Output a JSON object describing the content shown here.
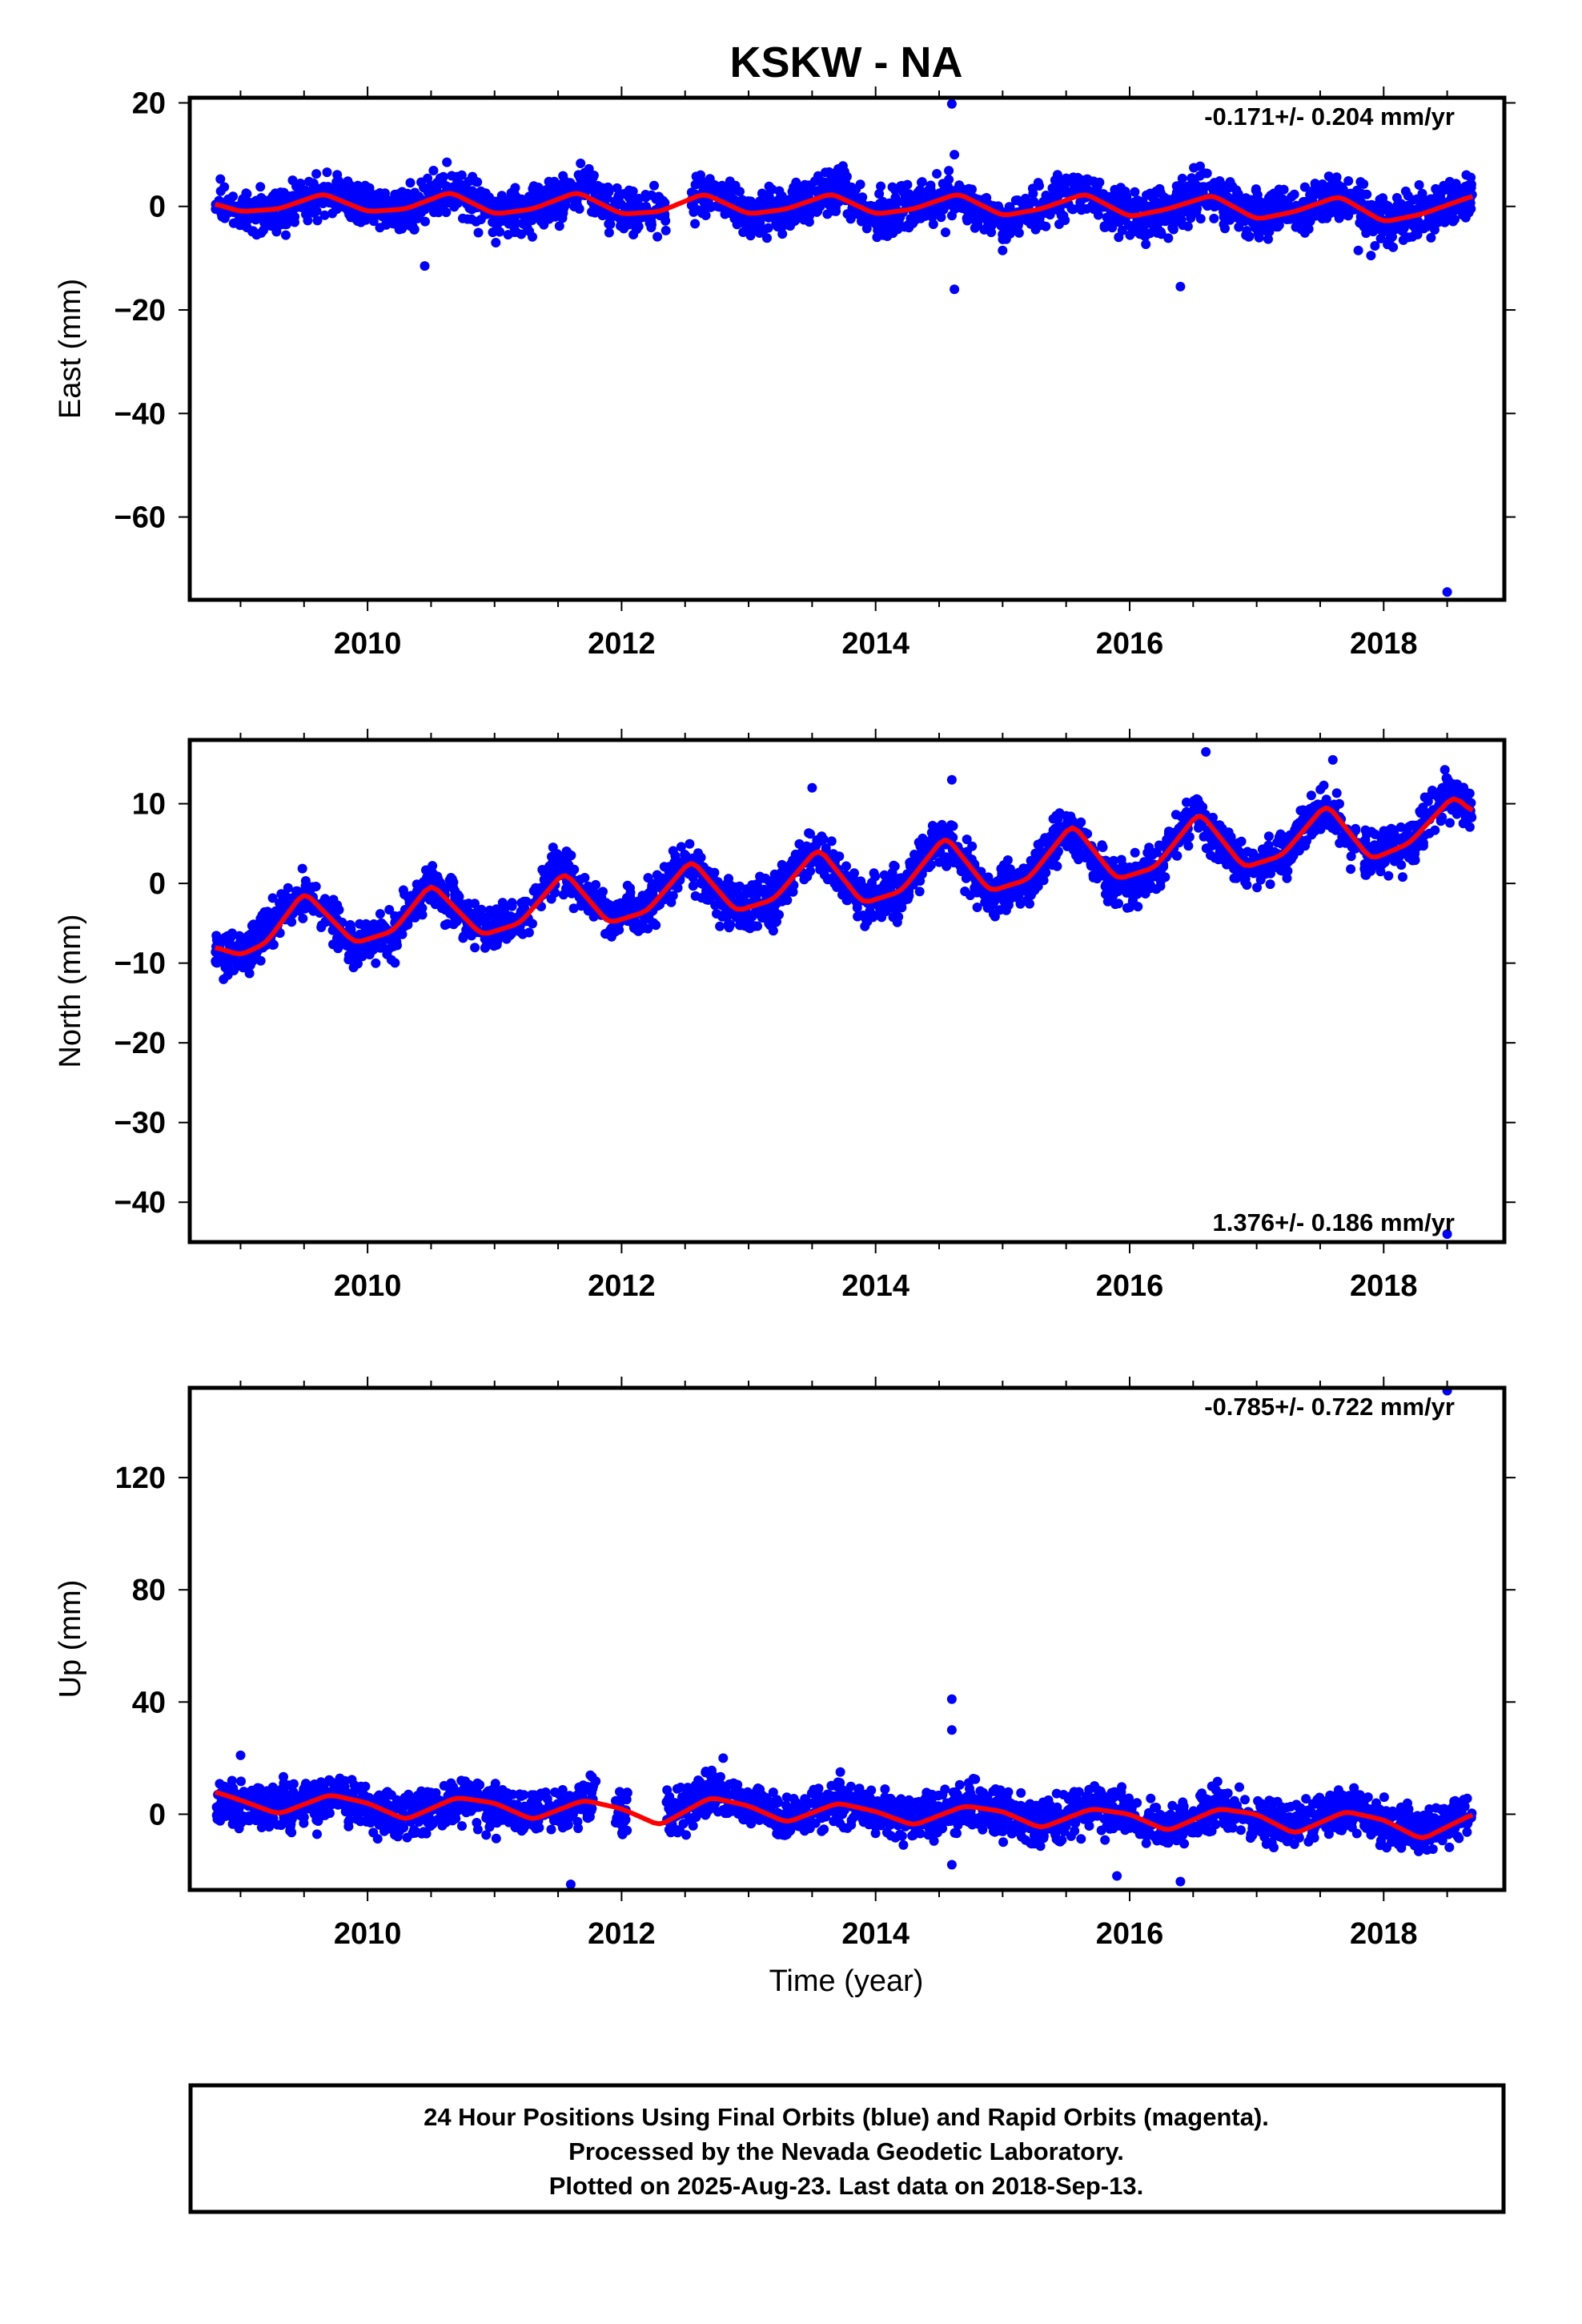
{
  "chart_data": {
    "type": "scatter",
    "title": "KSKW - NA",
    "xlabel": "Time (year)",
    "xlim": [
      2008.6,
      2018.95
    ],
    "x_ticks": [
      "2010",
      "2012",
      "2014",
      "2016",
      "2018"
    ],
    "colors": {
      "points": "#0000ff",
      "fit": "#ff0000",
      "frame": "#000000"
    },
    "panels": [
      {
        "ylabel": "East (mm)",
        "ylim": [
          -76,
          21
        ],
        "y_ticks": [
          "20",
          "0",
          "−20",
          "−40",
          "−60"
        ],
        "rate": "-0.171+/- 0.204 mm/yr",
        "rate_position": "top-right",
        "series": [
          {
            "type": "scatter",
            "color": "#0000ff",
            "sampled_points": [
              [
                2008.8,
                0.5
              ],
              [
                2009.0,
                -1.5
              ],
              [
                2009.3,
                -1
              ],
              [
                2009.7,
                3
              ],
              [
                2010.0,
                -0.5
              ],
              [
                2010.3,
                -1
              ],
              [
                2010.7,
                3.5
              ],
              [
                2011.0,
                -1.5
              ],
              [
                2011.3,
                -0.5
              ],
              [
                2011.7,
                3.5
              ],
              [
                2012.0,
                -1.5
              ],
              [
                2012.3,
                -1
              ],
              [
                2012.7,
                3
              ],
              [
                2013.0,
                -1.5
              ],
              [
                2013.3,
                -0.5
              ],
              [
                2013.7,
                3.5
              ],
              [
                2014.0,
                -1.5
              ],
              [
                2014.3,
                -0.5
              ],
              [
                2014.6,
                3
              ],
              [
                2015.0,
                -2
              ],
              [
                2015.3,
                -0.5
              ],
              [
                2015.6,
                3
              ],
              [
                2016.0,
                -2
              ],
              [
                2016.3,
                -0.5
              ],
              [
                2016.6,
                3
              ],
              [
                2017.0,
                -2.5
              ],
              [
                2017.3,
                -1
              ],
              [
                2017.6,
                2.5
              ],
              [
                2018.0,
                -3
              ],
              [
                2018.3,
                -1
              ],
              [
                2018.7,
                2
              ]
            ]
          },
          {
            "type": "outliers",
            "color": "#0000ff",
            "points": [
              [
                2010.45,
                -11.5
              ],
              [
                2014.6,
                19.8
              ],
              [
                2014.62,
                10
              ],
              [
                2014.62,
                -16
              ],
              [
                2016.4,
                -15.5
              ],
              [
                2018.5,
                -74.5
              ],
              [
                2014.55,
                -5
              ],
              [
                2015.0,
                -8.5
              ],
              [
                2017.8,
                -8.5
              ],
              [
                2017.9,
                -9.5
              ]
            ]
          },
          {
            "type": "line",
            "name": "",
            "color": "#ff0000",
            "points": [
              [
                2008.8,
                0.5
              ],
              [
                2009.0,
                -1
              ],
              [
                2009.3,
                -0.5
              ],
              [
                2009.65,
                2.5
              ],
              [
                2010.0,
                -1
              ],
              [
                2010.3,
                -0.5
              ],
              [
                2010.65,
                2.8
              ],
              [
                2011.0,
                -1.5
              ],
              [
                2011.3,
                -0.5
              ],
              [
                2011.65,
                2.8
              ],
              [
                2012.0,
                -1.5
              ],
              [
                2012.3,
                -1
              ],
              [
                2012.65,
                2.5
              ],
              [
                2013.0,
                -1.5
              ],
              [
                2013.3,
                -0.5
              ],
              [
                2013.65,
                2.5
              ],
              [
                2014.0,
                -1.5
              ],
              [
                2014.3,
                -0.5
              ],
              [
                2014.65,
                2.5
              ],
              [
                2015.0,
                -1.8
              ],
              [
                2015.3,
                -0.5
              ],
              [
                2015.65,
                2.5
              ],
              [
                2016.0,
                -2
              ],
              [
                2016.3,
                -0.5
              ],
              [
                2016.65,
                2.2
              ],
              [
                2017.0,
                -2.5
              ],
              [
                2017.3,
                -1
              ],
              [
                2017.65,
                2
              ],
              [
                2018.0,
                -3
              ],
              [
                2018.3,
                -1.5
              ],
              [
                2018.7,
                2
              ]
            ]
          }
        ]
      },
      {
        "ylabel": "North (mm)",
        "ylim": [
          -45,
          18
        ],
        "y_ticks": [
          "10",
          "0",
          "−10",
          "−20",
          "−30",
          "−40"
        ],
        "rate": "1.376+/- 0.186 mm/yr",
        "rate_position": "bottom-right",
        "series": [
          {
            "type": "scatter",
            "color": "#0000ff",
            "sampled_points": [
              [
                2008.8,
                -8.5
              ],
              [
                2009.0,
                -9
              ],
              [
                2009.5,
                -1
              ],
              [
                2009.9,
                -7.5
              ],
              [
                2010.2,
                -6.5
              ],
              [
                2010.5,
                0
              ],
              [
                2010.9,
                -6
              ],
              [
                2011.2,
                -5
              ],
              [
                2011.5,
                2
              ],
              [
                2011.9,
                -4.5
              ],
              [
                2012.2,
                -3
              ],
              [
                2012.5,
                3
              ],
              [
                2012.9,
                -3.5
              ],
              [
                2013.2,
                -2
              ],
              [
                2013.5,
                4.5
              ],
              [
                2013.9,
                -2.5
              ],
              [
                2014.2,
                -1
              ],
              [
                2014.5,
                6
              ],
              [
                2014.9,
                -1
              ],
              [
                2015.2,
                0
              ],
              [
                2015.5,
                7
              ],
              [
                2015.9,
                0
              ],
              [
                2016.2,
                1.5
              ],
              [
                2016.5,
                9
              ],
              [
                2016.9,
                2
              ],
              [
                2017.2,
                3
              ],
              [
                2017.5,
                10
              ],
              [
                2017.9,
                3
              ],
              [
                2018.2,
                5
              ],
              [
                2018.5,
                11.5
              ],
              [
                2018.7,
                9
              ]
            ]
          },
          {
            "type": "outliers",
            "color": "#0000ff",
            "points": [
              [
                2008.9,
                -11.5
              ],
              [
                2013.5,
                12
              ],
              [
                2014.6,
                13
              ],
              [
                2016.6,
                16.5
              ],
              [
                2017.6,
                15.5
              ],
              [
                2018.5,
                -44
              ],
              [
                2014.8,
                -3
              ],
              [
                2016.0,
                -3
              ]
            ]
          },
          {
            "type": "line",
            "name": "",
            "color": "#ff0000",
            "points": [
              [
                2008.8,
                -8
              ],
              [
                2009.0,
                -9
              ],
              [
                2009.2,
                -7.5
              ],
              [
                2009.5,
                -1
              ],
              [
                2009.9,
                -7.5
              ],
              [
                2010.2,
                -6
              ],
              [
                2010.5,
                0
              ],
              [
                2010.9,
                -6.5
              ],
              [
                2011.2,
                -5
              ],
              [
                2011.55,
                1.5
              ],
              [
                2011.9,
                -5
              ],
              [
                2012.2,
                -3.5
              ],
              [
                2012.55,
                3
              ],
              [
                2012.9,
                -3.5
              ],
              [
                2013.2,
                -2
              ],
              [
                2013.55,
                4.5
              ],
              [
                2013.9,
                -2.5
              ],
              [
                2014.2,
                -1
              ],
              [
                2014.55,
                6
              ],
              [
                2014.9,
                -1
              ],
              [
                2015.2,
                0.5
              ],
              [
                2015.55,
                7.5
              ],
              [
                2015.9,
                0.5
              ],
              [
                2016.2,
                2
              ],
              [
                2016.55,
                9
              ],
              [
                2016.9,
                2
              ],
              [
                2017.2,
                3.5
              ],
              [
                2017.55,
                10
              ],
              [
                2017.9,
                3
              ],
              [
                2018.2,
                5
              ],
              [
                2018.55,
                11
              ],
              [
                2018.7,
                9
              ]
            ]
          }
        ]
      },
      {
        "ylabel": "Up (mm)",
        "ylim": [
          -27,
          152
        ],
        "y_ticks": [
          "120",
          "80",
          "40",
          "0"
        ],
        "rate": "-0.785+/- 0.722 mm/yr",
        "rate_position": "top-right",
        "series": [
          {
            "type": "scatter",
            "color": "#0000ff",
            "sampled_points": [
              [
                2008.8,
                6
              ],
              [
                2009.2,
                2
              ],
              [
                2009.5,
                3
              ],
              [
                2009.8,
                6
              ],
              [
                2010.1,
                0
              ],
              [
                2010.4,
                0
              ],
              [
                2010.8,
                5
              ],
              [
                2011.1,
                1
              ],
              [
                2011.4,
                0
              ],
              [
                2011.8,
                5
              ],
              [
                2012.1,
                0
              ],
              [
                2012.4,
                -1
              ],
              [
                2012.7,
                8
              ],
              [
                2013.0,
                3
              ],
              [
                2013.3,
                -2
              ],
              [
                2013.7,
                5
              ],
              [
                2014.0,
                0
              ],
              [
                2014.3,
                -2
              ],
              [
                2014.7,
                4
              ],
              [
                2015.0,
                0
              ],
              [
                2015.3,
                -3
              ],
              [
                2015.7,
                3
              ],
              [
                2016.0,
                -1
              ],
              [
                2016.3,
                -4
              ],
              [
                2016.7,
                2
              ],
              [
                2017.0,
                -1
              ],
              [
                2017.3,
                -5
              ],
              [
                2017.7,
                2
              ],
              [
                2018.0,
                -3
              ],
              [
                2018.3,
                -7
              ],
              [
                2018.7,
                0
              ]
            ]
          },
          {
            "type": "outliers",
            "color": "#0000ff",
            "points": [
              [
                2014.6,
                41
              ],
              [
                2014.6,
                30
              ],
              [
                2018.5,
                151
              ],
              [
                2011.6,
                -25
              ],
              [
                2015.9,
                -22
              ],
              [
                2016.4,
                -24
              ],
              [
                2014.6,
                -18
              ],
              [
                2009.0,
                21
              ],
              [
                2012.8,
                20
              ]
            ]
          },
          {
            "type": "line",
            "name": "",
            "color": "#ff0000",
            "points": [
              [
                2008.8,
                8
              ],
              [
                2009.0,
                5
              ],
              [
                2009.3,
                0
              ],
              [
                2009.7,
                7
              ],
              [
                2010.0,
                4
              ],
              [
                2010.3,
                -2
              ],
              [
                2010.7,
                6
              ],
              [
                2011.0,
                4
              ],
              [
                2011.3,
                -2
              ],
              [
                2011.7,
                5
              ],
              [
                2012.0,
                2
              ],
              [
                2012.3,
                -4
              ],
              [
                2012.7,
                6
              ],
              [
                2013.0,
                3
              ],
              [
                2013.3,
                -3
              ],
              [
                2013.7,
                4
              ],
              [
                2014.0,
                1
              ],
              [
                2014.3,
                -4
              ],
              [
                2014.7,
                3
              ],
              [
                2015.0,
                1
              ],
              [
                2015.3,
                -5
              ],
              [
                2015.7,
                2
              ],
              [
                2016.0,
                0
              ],
              [
                2016.3,
                -6
              ],
              [
                2016.7,
                2
              ],
              [
                2017.0,
                0
              ],
              [
                2017.3,
                -7
              ],
              [
                2017.7,
                1
              ],
              [
                2018.0,
                -2
              ],
              [
                2018.3,
                -9
              ],
              [
                2018.7,
                0
              ]
            ]
          }
        ]
      }
    ]
  },
  "caption": {
    "line1": "24 Hour Positions Using Final Orbits (blue) and Rapid Orbits (magenta).",
    "line2": "Processed by the Nevada Geodetic Laboratory.",
    "line3": "Plotted on 2025-Aug-23. Last data on 2018-Sep-13."
  }
}
